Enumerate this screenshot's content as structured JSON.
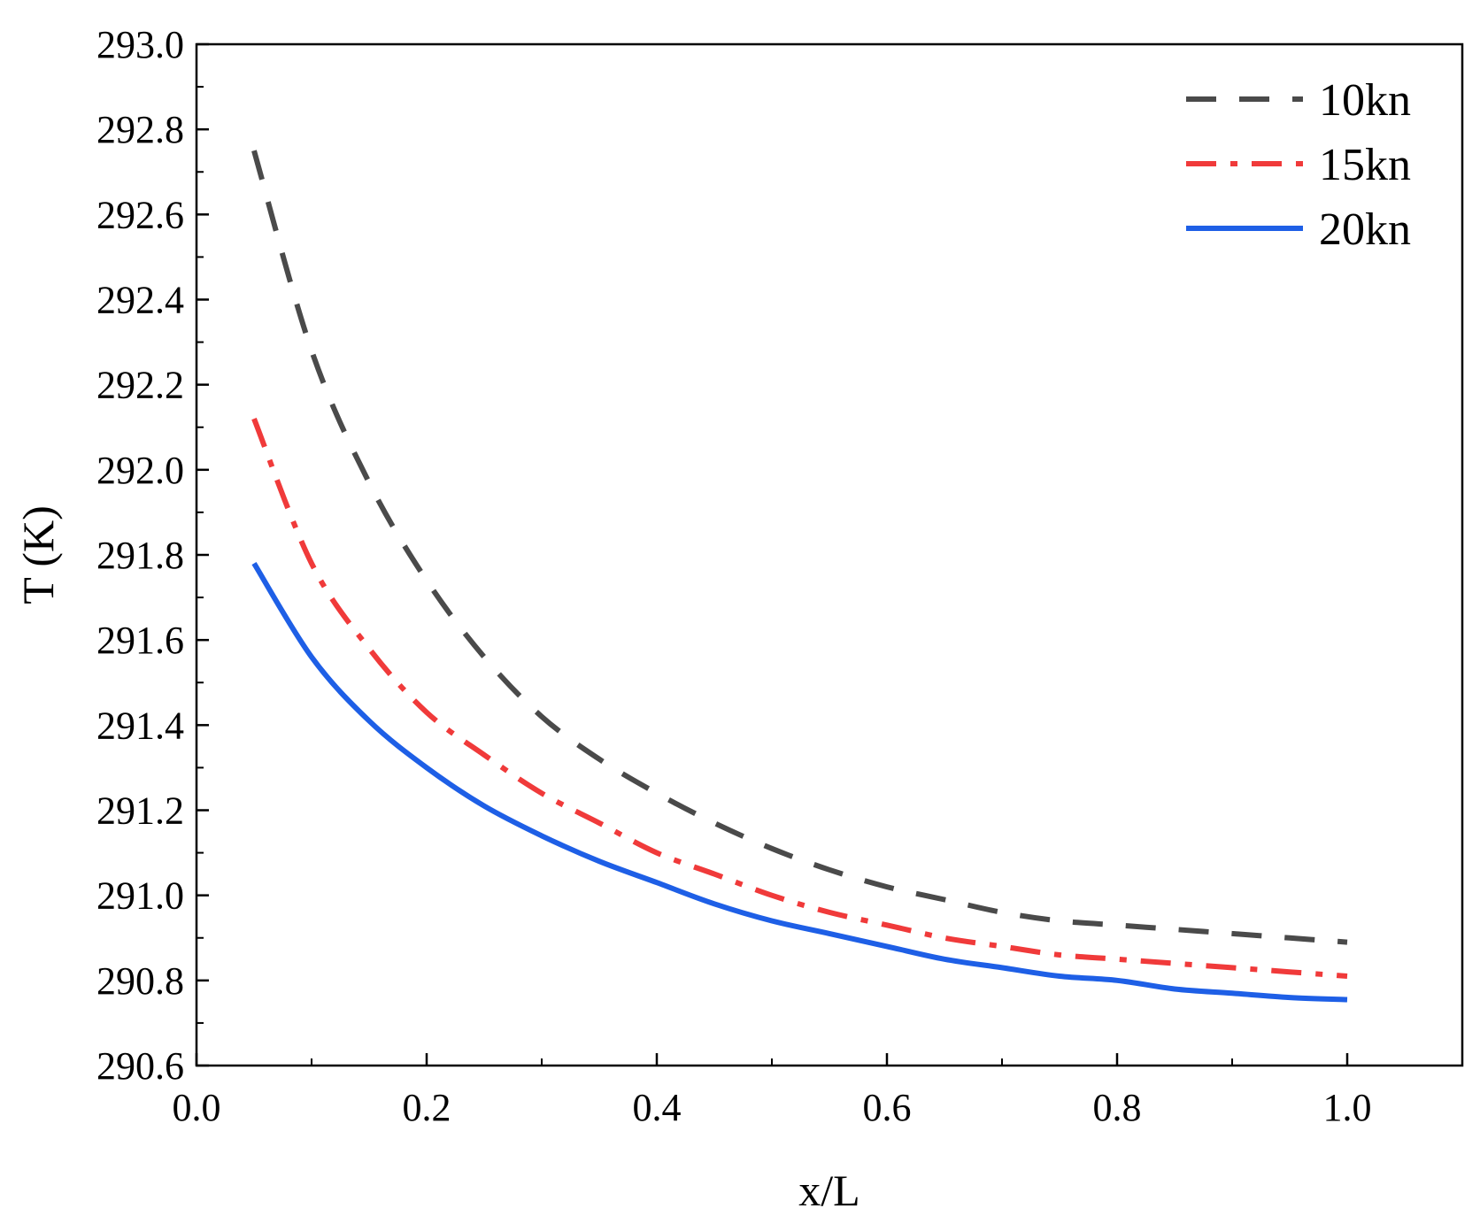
{
  "chart_data": {
    "type": "line",
    "xlabel": "x/L",
    "ylabel": "T (K)",
    "xlim": [
      0.0,
      1.1
    ],
    "ylim": [
      290.6,
      293.0
    ],
    "x_ticks": [
      "0.0",
      "0.2",
      "0.4",
      "0.6",
      "0.8",
      "1.0"
    ],
    "y_ticks": [
      "290.6",
      "290.8",
      "291.0",
      "291.2",
      "291.4",
      "291.6",
      "291.8",
      "292.0",
      "292.2",
      "292.4",
      "292.6",
      "292.8",
      "293.0"
    ],
    "grid": false,
    "legend_position": "top-right",
    "x": [
      0.05,
      0.1,
      0.15,
      0.2,
      0.25,
      0.3,
      0.35,
      0.4,
      0.45,
      0.5,
      0.55,
      0.6,
      0.65,
      0.7,
      0.75,
      0.8,
      0.85,
      0.9,
      0.95,
      1.0
    ],
    "series": [
      {
        "name": "10kn",
        "color": "#4a4a4a",
        "style": "dash",
        "values": [
          292.75,
          292.28,
          291.97,
          291.74,
          291.56,
          291.42,
          291.32,
          291.24,
          291.17,
          291.11,
          291.06,
          291.02,
          290.99,
          290.96,
          290.94,
          290.93,
          290.92,
          290.91,
          290.9,
          290.89
        ]
      },
      {
        "name": "15kn",
        "color": "#f03a3a",
        "style": "dashdot",
        "values": [
          292.12,
          291.78,
          291.58,
          291.43,
          291.33,
          291.24,
          291.17,
          291.1,
          291.05,
          291.0,
          290.96,
          290.93,
          290.9,
          290.88,
          290.86,
          290.85,
          290.84,
          290.83,
          290.82,
          290.81
        ]
      },
      {
        "name": "20kn",
        "color": "#1e5fe6",
        "style": "solid",
        "values": [
          291.78,
          291.56,
          291.41,
          291.3,
          291.21,
          291.14,
          291.08,
          291.03,
          290.98,
          290.94,
          290.91,
          290.88,
          290.85,
          290.83,
          290.81,
          290.8,
          290.78,
          290.77,
          290.76,
          290.755
        ]
      }
    ]
  }
}
